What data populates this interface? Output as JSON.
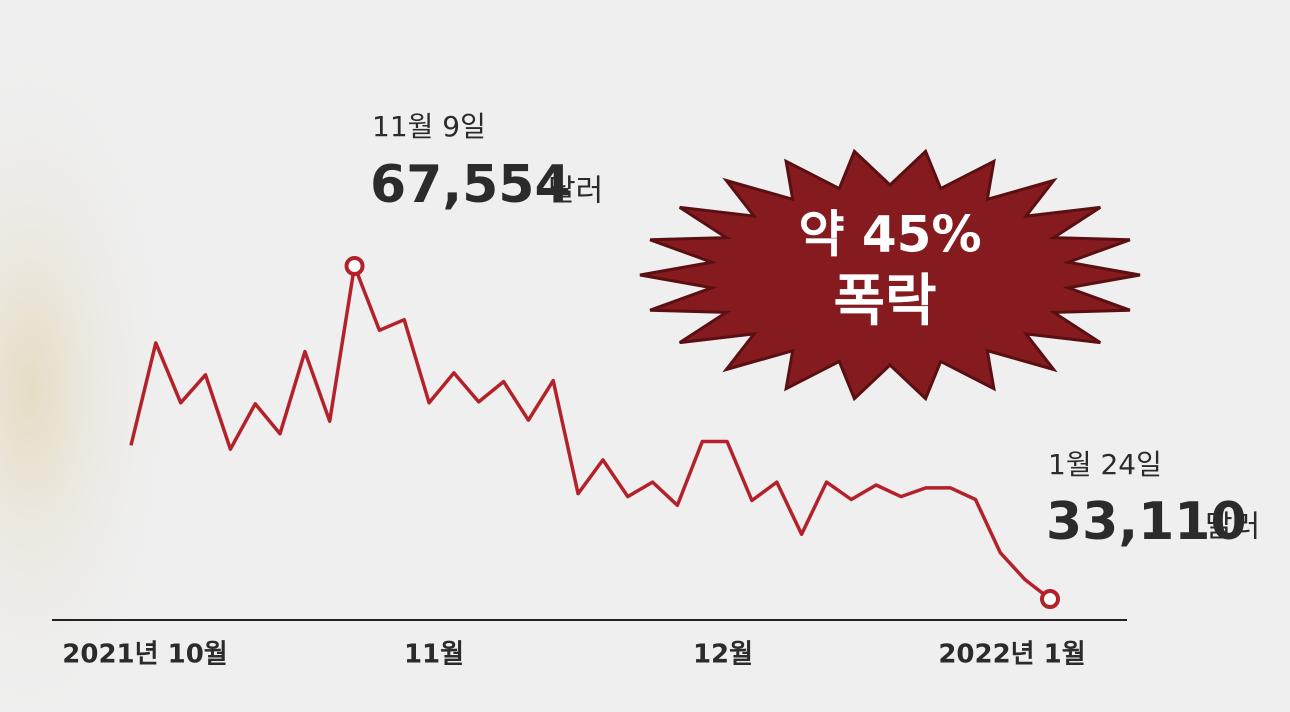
{
  "chart_data": {
    "type": "line",
    "x_labels": [
      "2021년 10월",
      "11월",
      "12월",
      "2022년 1월"
    ],
    "series": [
      {
        "color": "#b3222b",
        "values": [
          49000,
          59600,
          53400,
          56300,
          48600,
          53300,
          50200,
          58700,
          51500,
          67554,
          60900,
          62000,
          53400,
          56500,
          53500,
          55600,
          51600,
          55700,
          44000,
          47500,
          43700,
          45200,
          42800,
          49400,
          49400,
          43300,
          45200,
          39800,
          45200,
          43400,
          44900,
          43700,
          44600,
          44600,
          43400,
          37900,
          35100,
          33110
        ]
      }
    ],
    "peak": {
      "date": "11월 9일",
      "value_label": "67,554",
      "unit": "달러"
    },
    "last": {
      "date": "1월 24일",
      "value_label": "33,110",
      "unit": "달러"
    },
    "badge": [
      "약 45%",
      "폭락"
    ]
  }
}
